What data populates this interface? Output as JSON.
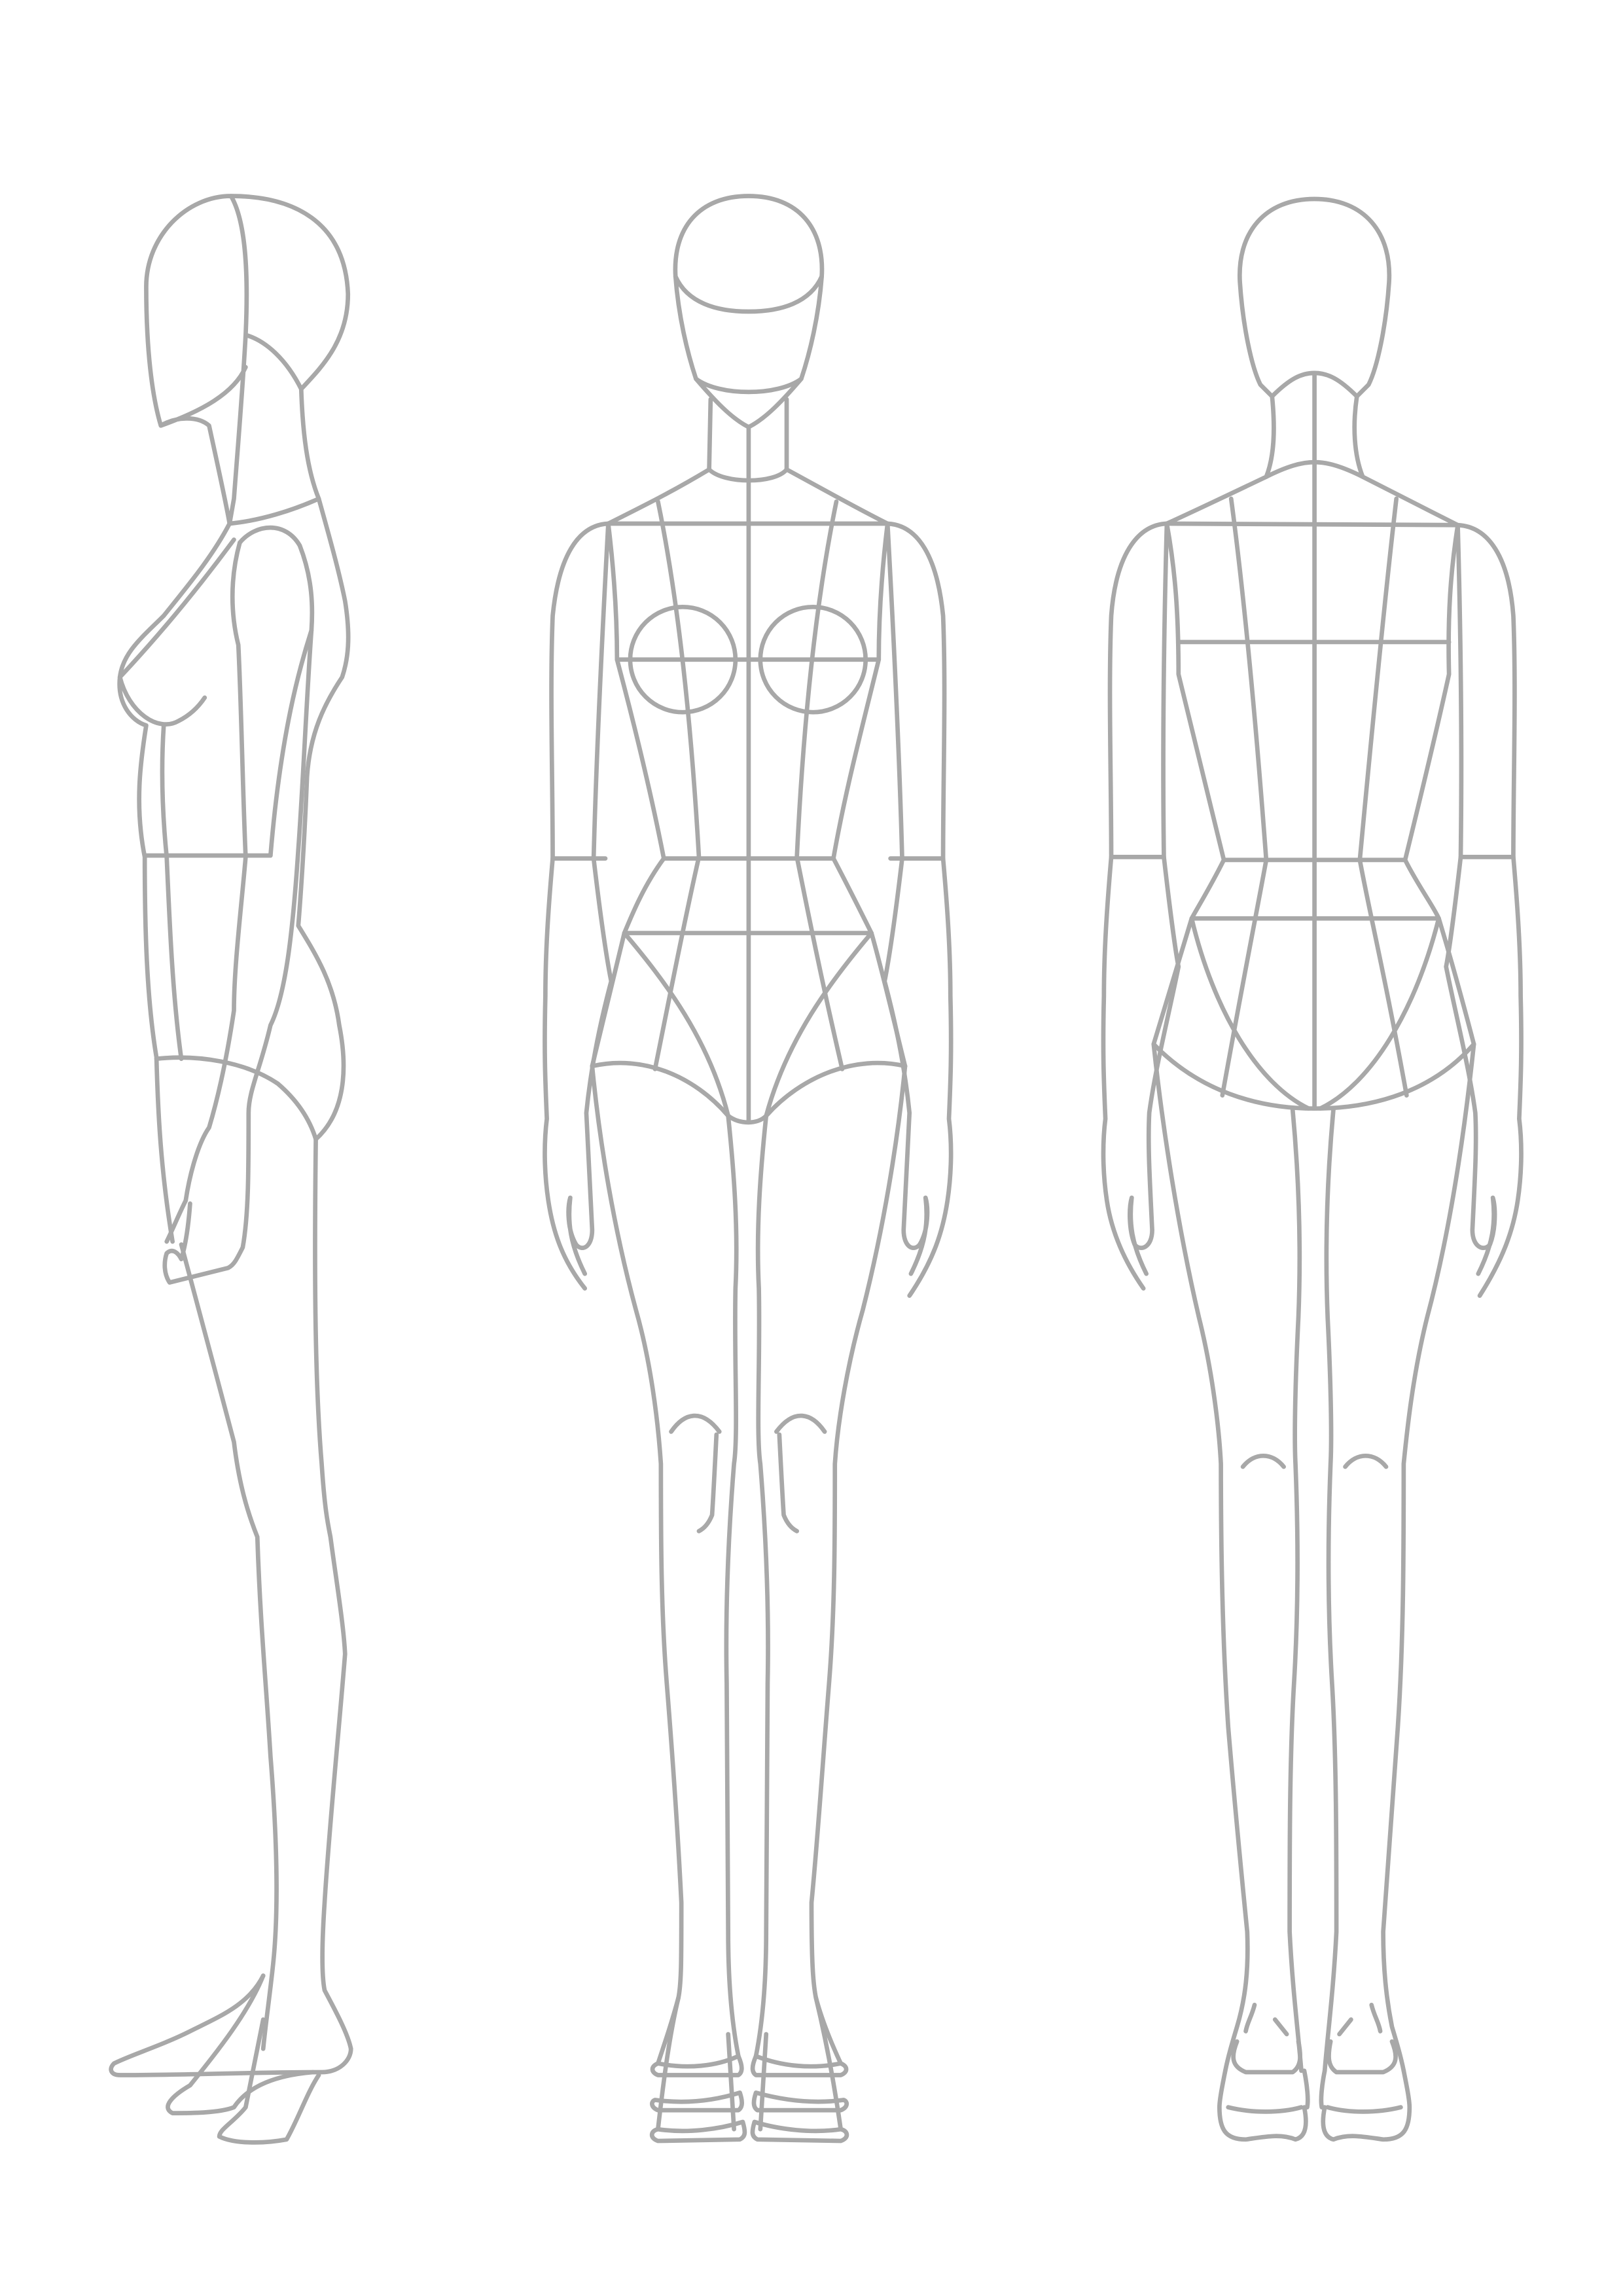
{
  "sheet": {
    "background": "#ffffff",
    "line_color": "#a8a8a8",
    "views": [
      "side",
      "front",
      "back"
    ]
  }
}
